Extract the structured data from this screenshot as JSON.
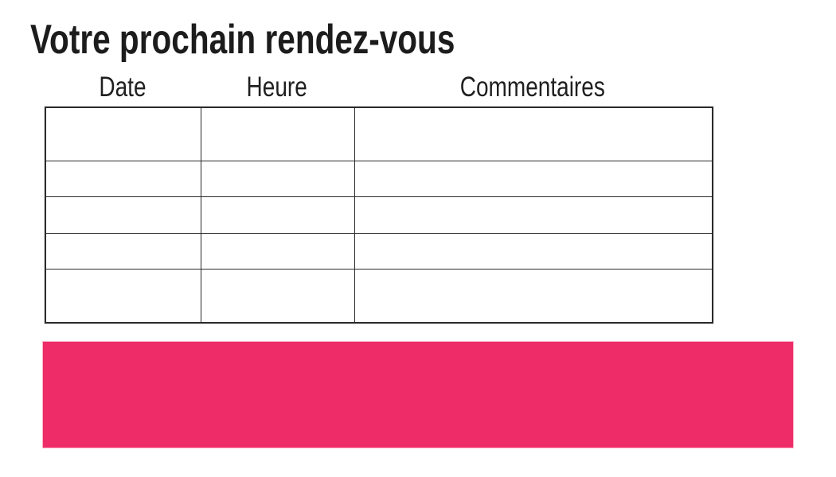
{
  "page": {
    "title": "Votre prochain rendez-vous",
    "background_color": "#FFFFFF",
    "title_color": "#1C1C1C"
  },
  "appointment_table": {
    "headers": [
      "Date",
      "Heure",
      "Commentaires"
    ],
    "rows": [
      [
        "",
        "",
        ""
      ],
      [
        "",
        "",
        ""
      ],
      [
        "",
        "",
        ""
      ],
      [
        "",
        "",
        ""
      ],
      [
        "",
        "",
        ""
      ]
    ],
    "border_color": "#2B2B2B",
    "header_text_color": "#1F1F1F"
  },
  "banner": {
    "text": "",
    "background_color": "#EE2C68"
  }
}
